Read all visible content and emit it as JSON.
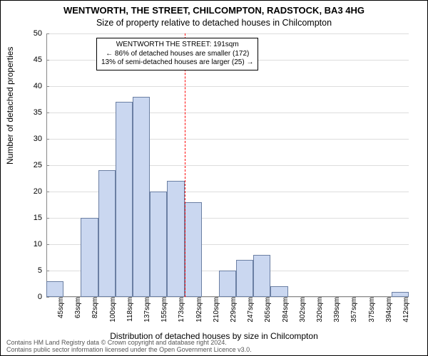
{
  "titles": {
    "main": "WENTWORTH, THE STREET, CHILCOMPTON, RADSTOCK, BA3 4HG",
    "sub": "Size of property relative to detached houses in Chilcompton"
  },
  "axes": {
    "y_label": "Number of detached properties",
    "x_label": "Distribution of detached houses by size in Chilcompton",
    "y_ticks": [
      0,
      5,
      10,
      15,
      20,
      25,
      30,
      35,
      40,
      45,
      50
    ],
    "y_max": 50,
    "x_categories": [
      "45sqm",
      "63sqm",
      "82sqm",
      "100sqm",
      "118sqm",
      "137sqm",
      "155sqm",
      "173sqm",
      "192sqm",
      "210sqm",
      "229sqm",
      "247sqm",
      "265sqm",
      "284sqm",
      "302sqm",
      "320sqm",
      "339sqm",
      "357sqm",
      "375sqm",
      "394sqm",
      "412sqm"
    ]
  },
  "chart": {
    "type": "histogram",
    "values": [
      3,
      0,
      15,
      24,
      37,
      38,
      20,
      22,
      18,
      0,
      5,
      7,
      8,
      2,
      0,
      0,
      0,
      0,
      0,
      0,
      1
    ],
    "bar_fill": "#cad7f0",
    "bar_border": "#6b7fa3",
    "grid_color": "#dddddd",
    "background": "#ffffff",
    "reference_line": {
      "x_index": 8,
      "color": "#ff0000",
      "style": "dashed"
    }
  },
  "annotation": {
    "line1": "WENTWORTH THE STREET: 191sqm",
    "line2": "← 86% of detached houses are smaller (172)",
    "line3": "13% of semi-detached houses are larger (25) →"
  },
  "footer": {
    "line1": "Contains HM Land Registry data © Crown copyright and database right 2024.",
    "line2": "Contains public sector information licensed under the Open Government Licence v3.0."
  },
  "style": {
    "title_fontsize": 13,
    "subtitle_fontsize": 12.5,
    "axis_label_fontsize": 12,
    "tick_fontsize": 11,
    "annotation_fontsize": 10,
    "footer_fontsize": 9
  }
}
